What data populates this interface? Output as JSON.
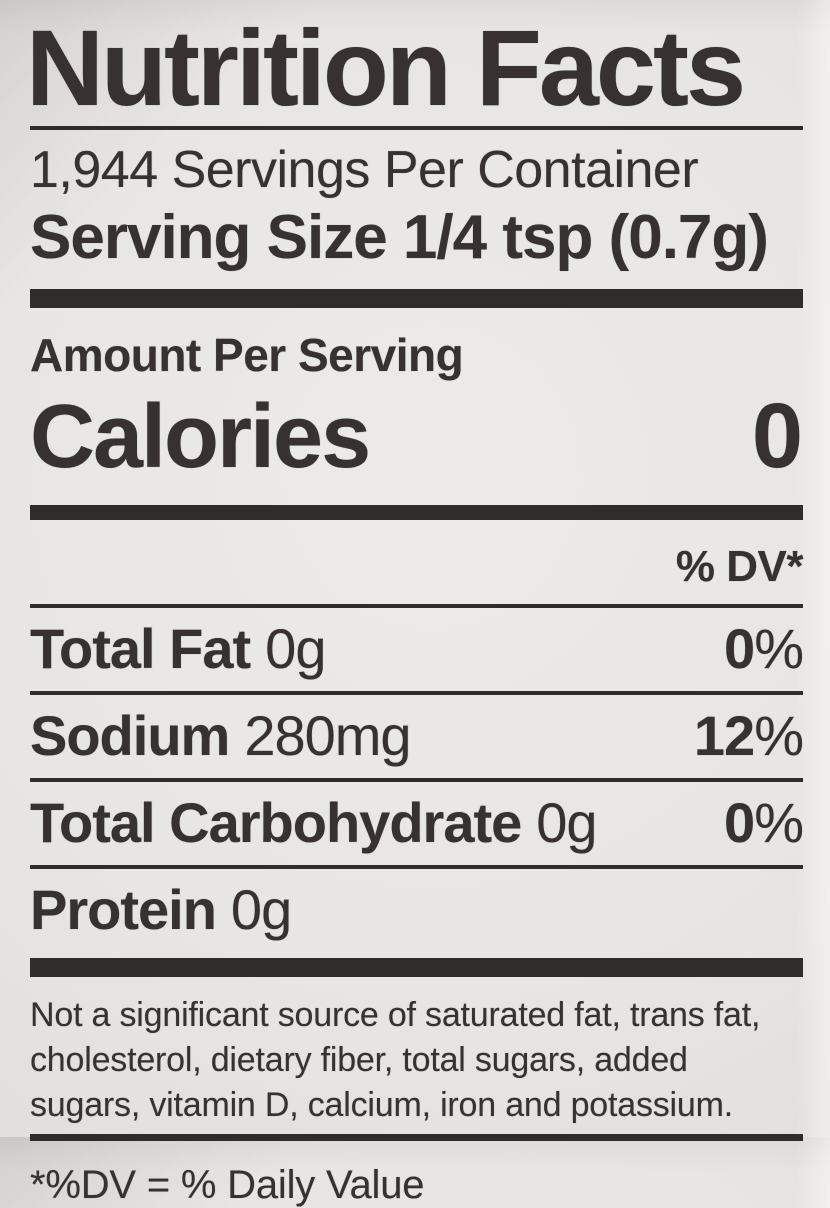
{
  "nutrition_label": {
    "title": "Nutrition Facts",
    "servings_per_container": "1,944 Servings Per Container",
    "serving_size": "Serving Size 1/4 tsp (0.7g)",
    "amount_per_serving_label": "Amount Per Serving",
    "calories": {
      "label": "Calories",
      "value": "0"
    },
    "daily_value_header": "% DV*",
    "nutrient_rows": [
      {
        "name": "Total Fat",
        "amount": "0g",
        "dv_value": "0",
        "dv_unit": "%"
      },
      {
        "name": "Sodium",
        "amount": "280mg",
        "dv_value": "12",
        "dv_unit": "%"
      },
      {
        "name": "Total Carbohydrate",
        "amount": "0g",
        "dv_value": "0",
        "dv_unit": "%"
      },
      {
        "name": "Protein",
        "amount": "0g",
        "dv_value": "",
        "dv_unit": ""
      }
    ],
    "footnote": "Not a significant source of saturated fat, trans fat, cholesterol, dietary fiber, total sugars, added sugars, vitamin D, calcium, iron and potassium.",
    "dv_definition": "*%DV = % Daily Value"
  },
  "colors": {
    "ink": "#37322f",
    "bar": "#302c29",
    "paper": "#e7e5e2"
  }
}
